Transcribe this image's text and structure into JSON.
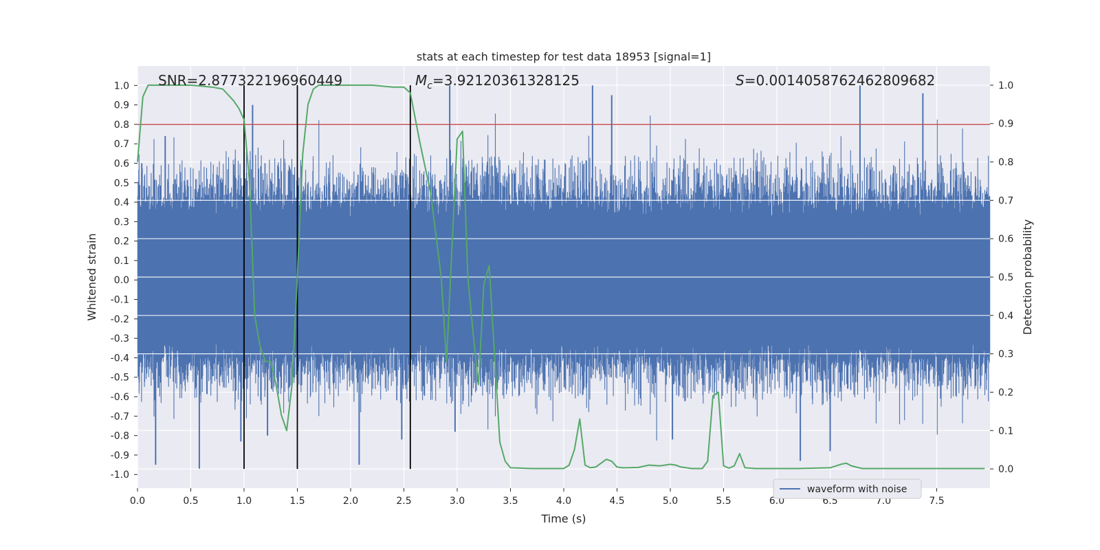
{
  "chart_data": {
    "type": "line",
    "title": "stats at each timestep for test data 18953 [signal=1]",
    "xlabel": "Time (s)",
    "ylabel_left": "Whitened strain",
    "ylabel_right": "Detection probability",
    "xlim": [
      0,
      8
    ],
    "ylim_left": [
      -1.07,
      1.1
    ],
    "ylim_right": [
      -0.05,
      1.05
    ],
    "x_ticks": [
      0.0,
      0.5,
      1.0,
      1.5,
      2.0,
      2.5,
      3.0,
      3.5,
      4.0,
      4.5,
      5.0,
      5.5,
      6.0,
      6.5,
      7.0,
      7.5
    ],
    "x_tick_labels": [
      "0.0",
      "0.5",
      "1.0",
      "1.5",
      "2.0",
      "2.5",
      "3.0",
      "3.5",
      "4.0",
      "4.5",
      "5.0",
      "5.5",
      "6.0",
      "6.5",
      "7.0",
      "7.5"
    ],
    "y_left_ticks": [
      1.0,
      0.9,
      0.8,
      0.7,
      0.6,
      0.5,
      0.4,
      0.3,
      0.2,
      0.1,
      0.0,
      -0.1,
      -0.2,
      -0.3,
      -0.4,
      -0.5,
      -0.6,
      -0.7,
      -0.8,
      -0.9,
      -1.0
    ],
    "y_left_tick_labels": [
      "1.0",
      "0.9",
      "0.8",
      "0.7",
      "0.6",
      "0.5",
      "0.4",
      "0.3",
      "0.2",
      "0.1",
      "0.0",
      "-0.1",
      "-0.2",
      "-0.3",
      "-0.4",
      "-0.5",
      "-0.6",
      "-0.7",
      "-0.8",
      "-0.9",
      "-1.0"
    ],
    "y_right_ticks": [
      1.0,
      0.9,
      0.8,
      0.7,
      0.6,
      0.5,
      0.4,
      0.3,
      0.2,
      0.1,
      0.0
    ],
    "y_right_tick_labels": [
      "1.0",
      "0.9",
      "0.8",
      "0.7",
      "0.6",
      "0.5",
      "0.4",
      "0.3",
      "0.2",
      "0.1",
      "0.0"
    ],
    "threshold_left": 0.8,
    "vertical_markers_s": [
      1.0,
      1.5,
      2.56
    ],
    "annotations": [
      {
        "text": "SNR=2.877322196960449"
      },
      {
        "symbol": "M",
        "subscript": "c",
        "text": "=3.92120361328125"
      },
      {
        "symbol": "S",
        "text": "=0.0014058762462809682"
      }
    ],
    "legend": {
      "label": "waveform with noise",
      "position": "lower-right"
    },
    "series": [
      {
        "name": "waveform with noise",
        "axis": "left",
        "kind": "noise",
        "duration_s": 8,
        "typical_envelope": 0.42,
        "max": 1.0,
        "min": -0.97,
        "spikes": [
          {
            "t": 0.04,
            "v": 0.6
          },
          {
            "t": 0.17,
            "v": -0.95
          },
          {
            "t": 0.26,
            "v": 0.74
          },
          {
            "t": 0.58,
            "v": -0.97
          },
          {
            "t": 0.97,
            "v": -0.83
          },
          {
            "t": 1.08,
            "v": 0.9
          },
          {
            "t": 1.22,
            "v": -0.8
          },
          {
            "t": 2.08,
            "v": -0.95
          },
          {
            "t": 2.48,
            "v": -0.82
          },
          {
            "t": 2.93,
            "v": 1.0
          },
          {
            "t": 2.98,
            "v": -0.78
          },
          {
            "t": 4.27,
            "v": 1.0
          },
          {
            "t": 4.45,
            "v": 0.95
          },
          {
            "t": 5.02,
            "v": -0.82
          },
          {
            "t": 6.22,
            "v": -0.93
          },
          {
            "t": 6.5,
            "v": -0.88
          },
          {
            "t": 6.78,
            "v": 1.0
          },
          {
            "t": 7.37,
            "v": 0.96
          }
        ]
      },
      {
        "name": "detection probability",
        "axis": "right",
        "color": "#55a868",
        "x": [
          0.0,
          0.05,
          0.1,
          0.3,
          0.5,
          0.7,
          0.8,
          0.9,
          0.95,
          1.0,
          1.05,
          1.1,
          1.15,
          1.2,
          1.25,
          1.3,
          1.35,
          1.4,
          1.45,
          1.5,
          1.55,
          1.6,
          1.65,
          1.7,
          2.0,
          2.2,
          2.4,
          2.5,
          2.56,
          2.65,
          2.75,
          2.85,
          2.9,
          3.0,
          3.05,
          3.1,
          3.15,
          3.2,
          3.25,
          3.3,
          3.4,
          3.45,
          3.5,
          3.7,
          3.9,
          4.0,
          4.05,
          4.1,
          4.15,
          4.2,
          4.25,
          4.3,
          4.35,
          4.4,
          4.45,
          4.5,
          4.55,
          4.6,
          4.7,
          4.8,
          4.9,
          5.0,
          5.05,
          5.1,
          5.2,
          5.3,
          5.35,
          5.4,
          5.45,
          5.5,
          5.55,
          5.6,
          5.65,
          5.7,
          5.8,
          6.0,
          6.2,
          6.5,
          6.6,
          6.65,
          6.7,
          6.8,
          7.0,
          7.5,
          7.95
        ],
        "y": [
          0.8,
          0.97,
          1.0,
          1.0,
          1.0,
          0.995,
          0.99,
          0.96,
          0.94,
          0.91,
          0.75,
          0.4,
          0.32,
          0.28,
          0.28,
          0.22,
          0.14,
          0.1,
          0.22,
          0.5,
          0.82,
          0.95,
          0.99,
          1.0,
          1.0,
          1.0,
          0.995,
          0.995,
          0.98,
          0.85,
          0.72,
          0.5,
          0.28,
          0.86,
          0.88,
          0.5,
          0.35,
          0.22,
          0.48,
          0.53,
          0.07,
          0.02,
          0.003,
          0.001,
          0.001,
          0.001,
          0.01,
          0.05,
          0.13,
          0.01,
          0.003,
          0.005,
          0.015,
          0.025,
          0.02,
          0.005,
          0.003,
          0.003,
          0.004,
          0.01,
          0.008,
          0.012,
          0.01,
          0.005,
          0.001,
          0.001,
          0.02,
          0.19,
          0.2,
          0.008,
          0.002,
          0.008,
          0.04,
          0.003,
          0.001,
          0.001,
          0.001,
          0.003,
          0.012,
          0.015,
          0.008,
          0.001,
          0.001,
          0.001,
          0.001
        ]
      }
    ]
  }
}
